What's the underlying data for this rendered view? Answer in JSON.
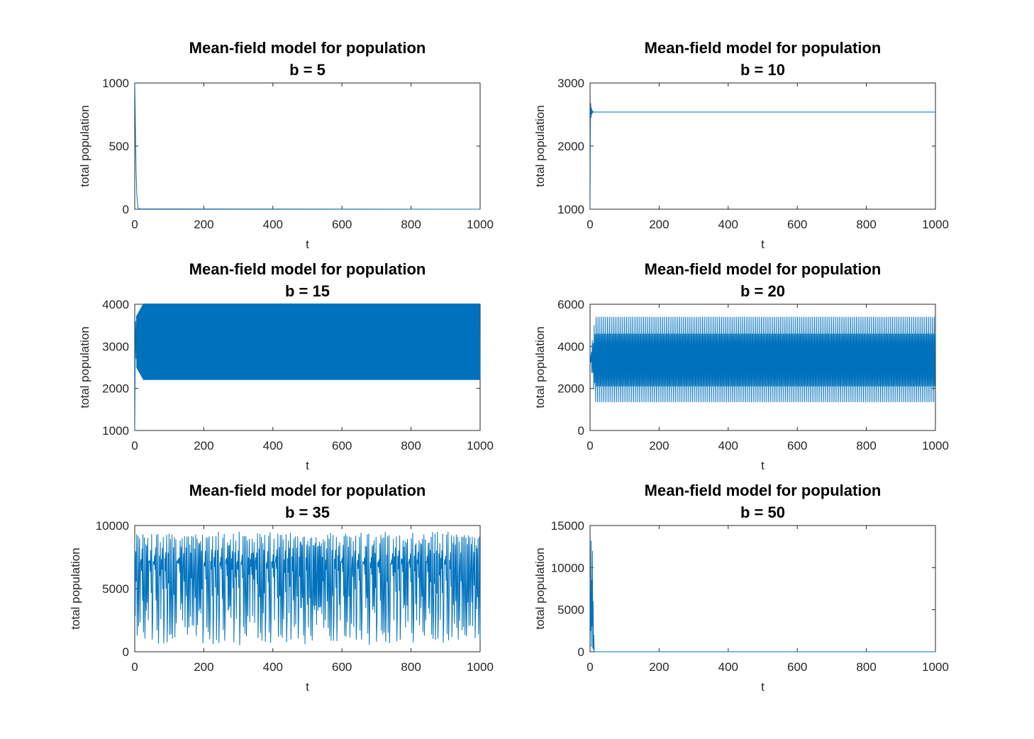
{
  "figure": {
    "background": "#ffffff",
    "line_color": "#0072BD"
  },
  "chart_data": [
    {
      "type": "line",
      "title": "Mean-field model for population",
      "subtitle": "b = 5",
      "xlabel": "t",
      "ylabel": "total population",
      "xlim": [
        0,
        1000
      ],
      "ylim": [
        0,
        1000
      ],
      "xticks": [
        "0",
        "200",
        "400",
        "600",
        "800",
        "1000"
      ],
      "yticks": [
        "0",
        "500",
        "1000"
      ],
      "yticks_values": [
        0,
        500,
        1000
      ],
      "grid": false,
      "series": [
        {
          "x": [
            0,
            1,
            2,
            4,
            6,
            8,
            10,
            15,
            1000
          ],
          "y": [
            1000,
            850,
            620,
            300,
            120,
            40,
            10,
            2,
            0
          ]
        }
      ]
    },
    {
      "type": "line",
      "title": "Mean-field model for population",
      "subtitle": "b = 10",
      "xlabel": "t",
      "ylabel": "total population",
      "xlim": [
        0,
        1000
      ],
      "ylim": [
        1000,
        3000
      ],
      "xticks": [
        "0",
        "200",
        "400",
        "600",
        "800",
        "1000"
      ],
      "yticks": [
        "1000",
        "2000",
        "3000"
      ],
      "yticks_values": [
        1000,
        2000,
        3000
      ],
      "grid": false,
      "series": [
        {
          "x": [
            0,
            1,
            2,
            3,
            4,
            5,
            6,
            7,
            8,
            10,
            1000
          ],
          "y": [
            1000,
            2300,
            2680,
            2450,
            2610,
            2500,
            2570,
            2520,
            2550,
            2540,
            2540
          ]
        }
      ]
    },
    {
      "type": "line",
      "title": "Mean-field model for population",
      "subtitle": "b = 15",
      "xlabel": "t",
      "ylabel": "total population",
      "xlim": [
        0,
        1000
      ],
      "ylim": [
        1000,
        4000
      ],
      "xticks": [
        "0",
        "200",
        "400",
        "600",
        "800",
        "1000"
      ],
      "yticks": [
        "1000",
        "2000",
        "3000",
        "4000"
      ],
      "yticks_values": [
        1000,
        2000,
        3000,
        4000
      ],
      "grid": false,
      "series": [
        {
          "pattern": "oscillation",
          "x_start": 0,
          "x_end": 1000,
          "initial": 1000,
          "min": 2200,
          "max": 4020,
          "period": 1.6
        }
      ]
    },
    {
      "type": "line",
      "title": "Mean-field model for population",
      "subtitle": "b = 20",
      "xlabel": "t",
      "ylabel": "total population",
      "xlim": [
        0,
        1000
      ],
      "ylim": [
        0,
        6000
      ],
      "xticks": [
        "0",
        "200",
        "400",
        "600",
        "800",
        "1000"
      ],
      "yticks": [
        "0",
        "2000",
        "4000",
        "6000"
      ],
      "yticks_values": [
        0,
        2000,
        4000,
        6000
      ],
      "grid": false,
      "series": [
        {
          "pattern": "period-two",
          "x_start": 0,
          "x_end": 1000,
          "initial": 3500,
          "outer_min": 1350,
          "outer_max": 5400,
          "inner_min": 2100,
          "inner_max": 4600,
          "period": 5.5
        }
      ]
    },
    {
      "type": "line",
      "title": "Mean-field model for population",
      "subtitle": "b = 35",
      "xlabel": "t",
      "ylabel": "total population",
      "xlim": [
        0,
        1000
      ],
      "ylim": [
        0,
        10000
      ],
      "xticks": [
        "0",
        "200",
        "400",
        "600",
        "800",
        "1000"
      ],
      "yticks": [
        "0",
        "5000",
        "10000"
      ],
      "yticks_values": [
        0,
        5000,
        10000
      ],
      "grid": false,
      "series": [
        {
          "pattern": "chaotic",
          "x_start": 0,
          "x_end": 1000,
          "min": 100,
          "max": 9500,
          "step": 1.4
        }
      ]
    },
    {
      "type": "line",
      "title": "Mean-field model for population",
      "subtitle": "b = 50",
      "xlabel": "t",
      "ylabel": "total population",
      "xlim": [
        0,
        1000
      ],
      "ylim": [
        0,
        15000
      ],
      "xticks": [
        "0",
        "200",
        "400",
        "600",
        "800",
        "1000"
      ],
      "yticks": [
        "0",
        "5000",
        "10000",
        "15000"
      ],
      "yticks_values": [
        0,
        5000,
        10000,
        15000
      ],
      "grid": false,
      "series": [
        {
          "x": [
            0,
            1,
            2,
            3,
            4,
            5,
            6,
            7,
            8,
            9,
            10,
            11,
            12,
            14,
            16,
            1000
          ],
          "y": [
            1000,
            7200,
            2500,
            13200,
            600,
            8500,
            3000,
            12000,
            400,
            6000,
            200,
            2000,
            50,
            10,
            0,
            0
          ]
        }
      ]
    }
  ]
}
